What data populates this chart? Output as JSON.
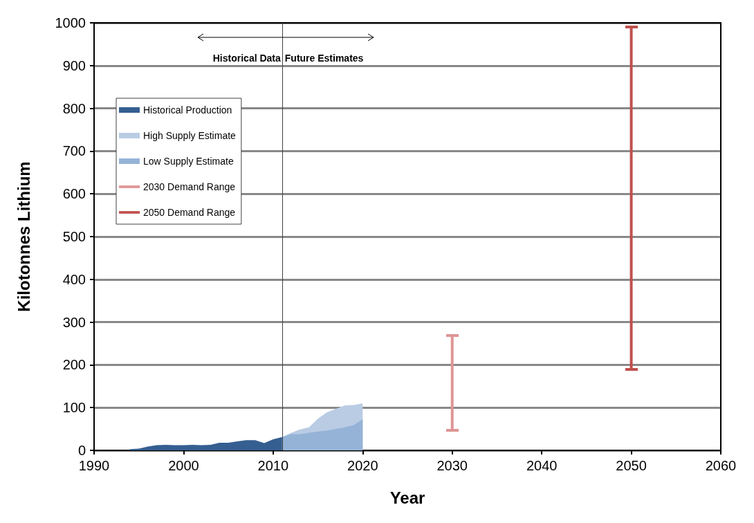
{
  "chart_data": {
    "type": "area",
    "xlabel": "Year",
    "ylabel": "Kilotonnes Lithium",
    "xlim": [
      1990,
      2060
    ],
    "xticks": [
      1990,
      2000,
      2010,
      2020,
      2030,
      2040,
      2050,
      2060
    ],
    "ylim": [
      0,
      1000
    ],
    "yticks": [
      0,
      100,
      200,
      300,
      400,
      500,
      600,
      700,
      800,
      900,
      1000
    ],
    "grid": "y",
    "legend": "top left",
    "series": [
      {
        "name": "Historical Production",
        "color": "#355f91",
        "x": [
          1994,
          1995,
          1996,
          1997,
          1998,
          1999,
          2000,
          2001,
          2002,
          2003,
          2004,
          2005,
          2006,
          2007,
          2008,
          2009,
          2010,
          2011
        ],
        "values": [
          3,
          4,
          9,
          12,
          13,
          12,
          12,
          13,
          12,
          13,
          18,
          18,
          21,
          24,
          24,
          17,
          26,
          31
        ]
      },
      {
        "name": "High Supply Estimate",
        "color": "#b9cce4",
        "x": [
          2011,
          2012,
          2013,
          2014,
          2015,
          2016,
          2017,
          2018,
          2019,
          2020
        ],
        "values": [
          31,
          41,
          49,
          54,
          74,
          89,
          97,
          105,
          106,
          110
        ]
      },
      {
        "name": "Low Supply Estimate",
        "color": "#95b3d7",
        "x": [
          2011,
          2012,
          2013,
          2014,
          2015,
          2016,
          2017,
          2018,
          2019,
          2020
        ],
        "values": [
          31,
          38,
          38,
          41,
          44,
          46,
          50,
          54,
          59,
          73
        ]
      },
      {
        "name": "2030 Demand Range",
        "type": "line",
        "color": "#de9594",
        "x": [
          2030,
          2030
        ],
        "values": [
          47,
          268
        ]
      },
      {
        "name": "2050 Demand Range",
        "type": "line",
        "color": "#c0504d",
        "x": [
          2050,
          2050
        ],
        "values": [
          190,
          990
        ]
      }
    ],
    "ref_lines": [
      {
        "axis": "x",
        "value": 2011,
        "color": "#404040"
      }
    ],
    "annotations": [
      {
        "text": "Historical Data",
        "x": 2011,
        "y": 920
      },
      {
        "text": "Future Estimates",
        "x": 2011,
        "y": 920
      }
    ]
  }
}
